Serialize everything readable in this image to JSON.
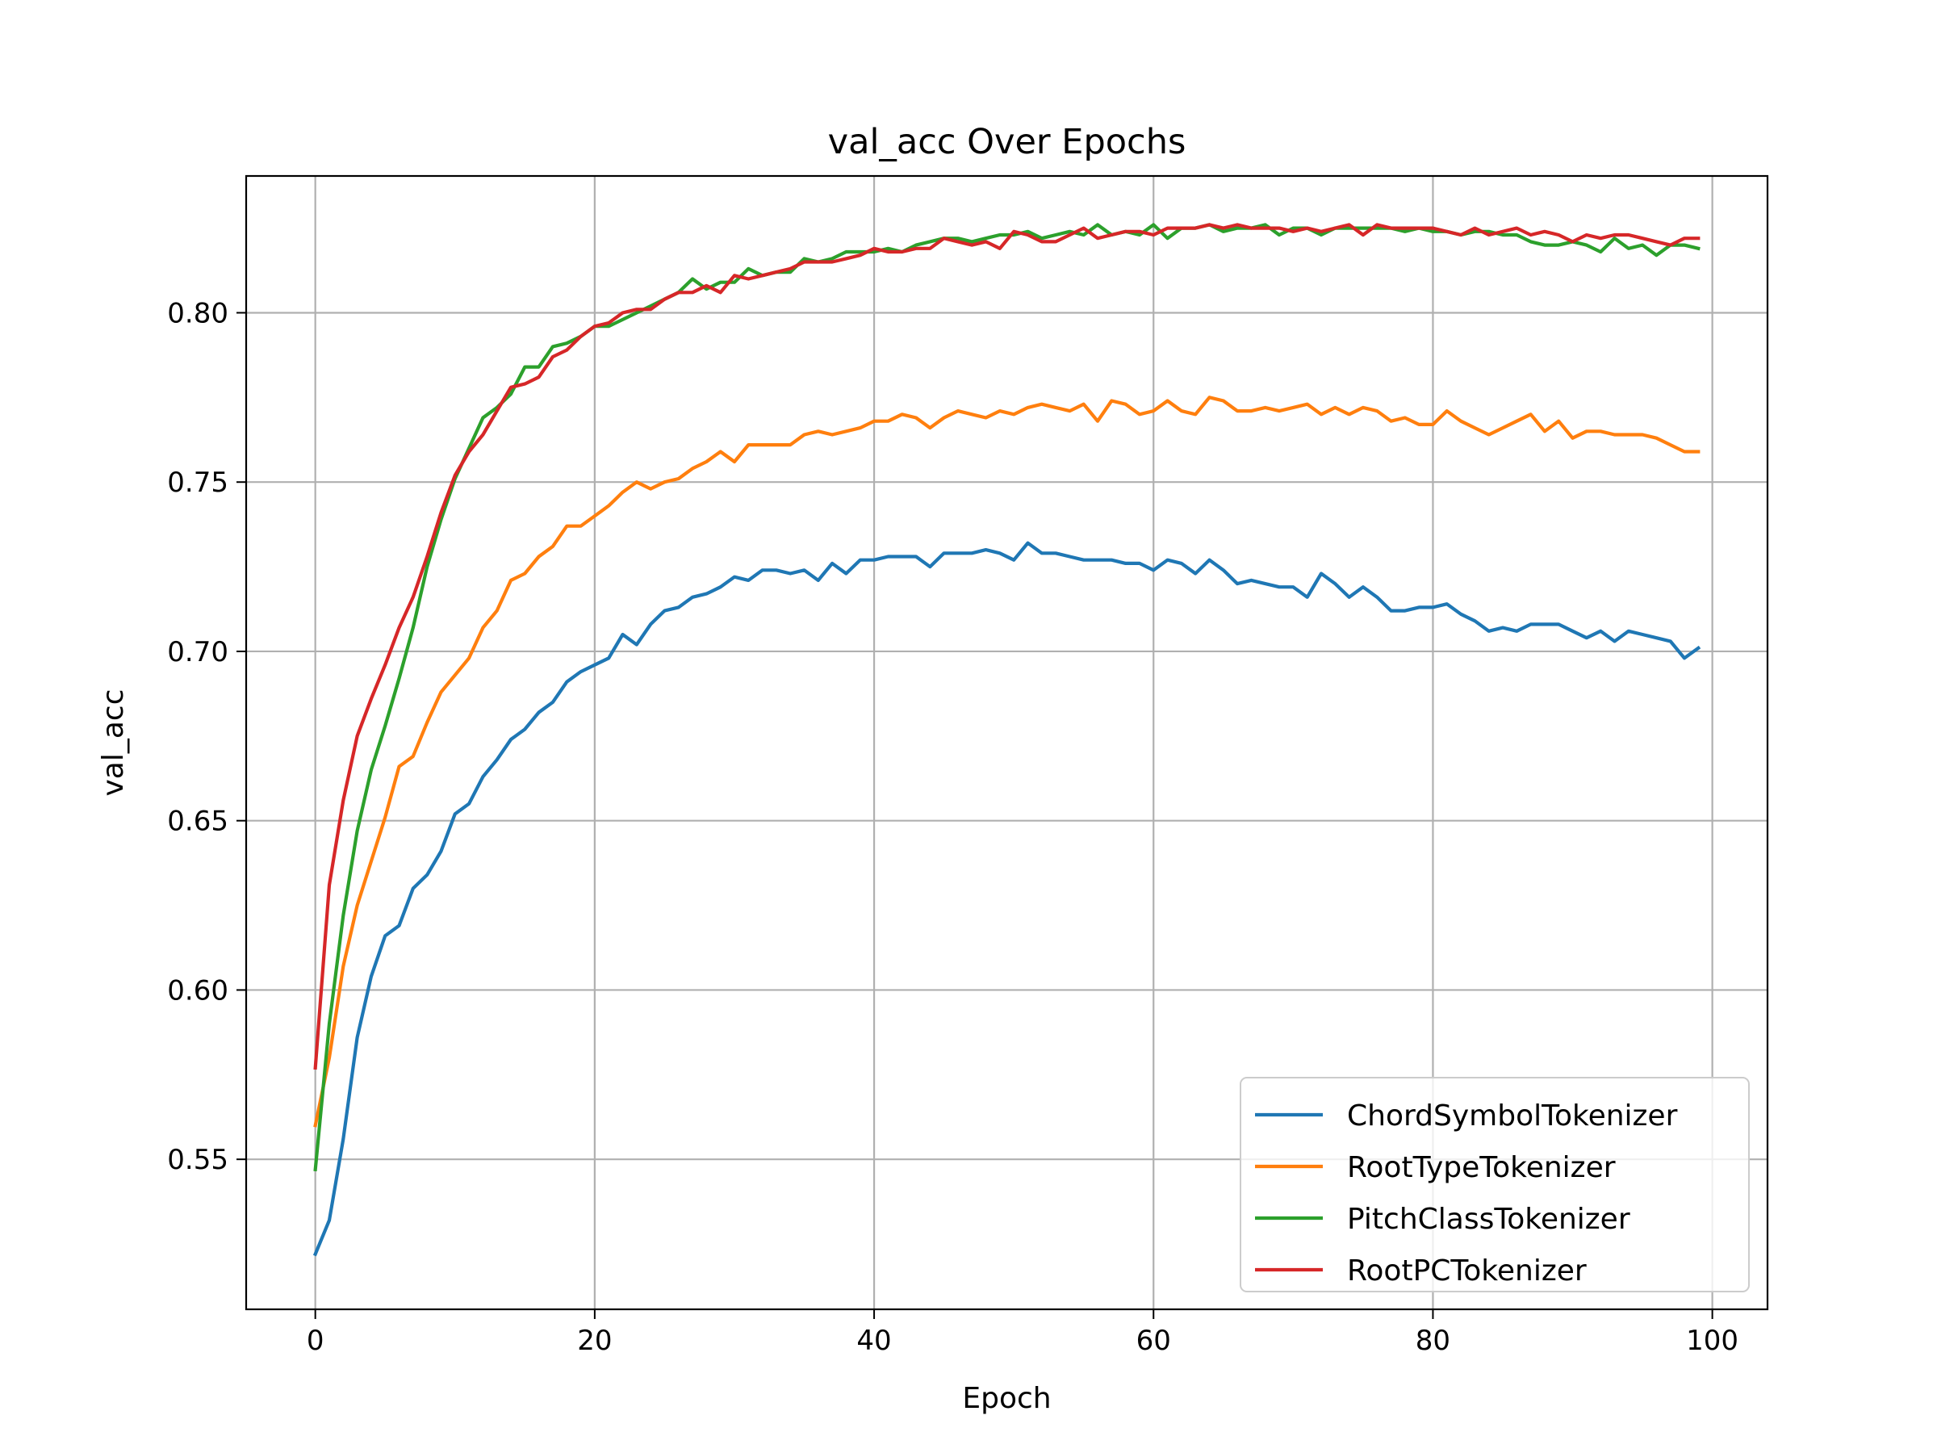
{
  "chart_data": {
    "type": "line",
    "title": "val_acc Over Epochs",
    "xlabel": "Epoch",
    "ylabel": "val_acc",
    "xlim": [
      -4.95,
      103.95
    ],
    "ylim": [
      0.5057,
      0.8404
    ],
    "xticks": [
      0,
      20,
      40,
      60,
      80,
      100
    ],
    "xtick_labels": [
      "0",
      "20",
      "40",
      "60",
      "80",
      "100"
    ],
    "yticks": [
      0.55,
      0.6,
      0.65,
      0.7,
      0.75,
      0.8
    ],
    "ytick_labels": [
      "0.55",
      "0.60",
      "0.65",
      "0.70",
      "0.75",
      "0.80"
    ],
    "grid": true,
    "legend_position": "lower-right",
    "x": [
      0,
      1,
      2,
      3,
      4,
      5,
      6,
      7,
      8,
      9,
      10,
      11,
      12,
      13,
      14,
      15,
      16,
      17,
      18,
      19,
      20,
      21,
      22,
      23,
      24,
      25,
      26,
      27,
      28,
      29,
      30,
      31,
      32,
      33,
      34,
      35,
      36,
      37,
      38,
      39,
      40,
      41,
      42,
      43,
      44,
      45,
      46,
      47,
      48,
      49,
      50,
      51,
      52,
      53,
      54,
      55,
      56,
      57,
      58,
      59,
      60,
      61,
      62,
      63,
      64,
      65,
      66,
      67,
      68,
      69,
      70,
      71,
      72,
      73,
      74,
      75,
      76,
      77,
      78,
      79,
      80,
      81,
      82,
      83,
      84,
      85,
      86,
      87,
      88,
      89,
      90,
      91,
      92,
      93,
      94,
      95,
      96,
      97,
      98,
      99
    ],
    "series": [
      {
        "name": "ChordSymbolTokenizer",
        "color": "#1f77b4",
        "values": [
          0.522,
          0.532,
          0.556,
          0.586,
          0.604,
          0.616,
          0.619,
          0.63,
          0.634,
          0.641,
          0.652,
          0.655,
          0.663,
          0.668,
          0.674,
          0.677,
          0.682,
          0.685,
          0.691,
          0.694,
          0.696,
          0.698,
          0.705,
          0.702,
          0.708,
          0.712,
          0.713,
          0.716,
          0.717,
          0.719,
          0.722,
          0.721,
          0.724,
          0.724,
          0.723,
          0.724,
          0.721,
          0.726,
          0.723,
          0.727,
          0.727,
          0.728,
          0.728,
          0.728,
          0.725,
          0.729,
          0.729,
          0.729,
          0.73,
          0.729,
          0.727,
          0.732,
          0.729,
          0.729,
          0.728,
          0.727,
          0.727,
          0.727,
          0.726,
          0.726,
          0.724,
          0.727,
          0.726,
          0.723,
          0.727,
          0.724,
          0.72,
          0.721,
          0.72,
          0.719,
          0.719,
          0.716,
          0.723,
          0.72,
          0.716,
          0.719,
          0.716,
          0.712,
          0.712,
          0.713,
          0.713,
          0.714,
          0.711,
          0.709,
          0.706,
          0.707,
          0.706,
          0.708,
          0.708,
          0.708,
          0.706,
          0.704,
          0.706,
          0.703,
          0.706,
          0.705,
          0.704,
          0.703,
          0.698,
          0.701
        ]
      },
      {
        "name": "RootTypeTokenizer",
        "color": "#ff7f0e",
        "values": [
          0.56,
          0.58,
          0.607,
          0.625,
          0.638,
          0.651,
          0.666,
          0.669,
          0.679,
          0.688,
          0.693,
          0.698,
          0.707,
          0.712,
          0.721,
          0.723,
          0.728,
          0.731,
          0.737,
          0.737,
          0.74,
          0.743,
          0.747,
          0.75,
          0.748,
          0.75,
          0.751,
          0.754,
          0.756,
          0.759,
          0.756,
          0.761,
          0.761,
          0.761,
          0.761,
          0.764,
          0.765,
          0.764,
          0.765,
          0.766,
          0.768,
          0.768,
          0.77,
          0.769,
          0.766,
          0.769,
          0.771,
          0.77,
          0.769,
          0.771,
          0.77,
          0.772,
          0.773,
          0.772,
          0.771,
          0.773,
          0.768,
          0.774,
          0.773,
          0.77,
          0.771,
          0.774,
          0.771,
          0.77,
          0.775,
          0.774,
          0.771,
          0.771,
          0.772,
          0.771,
          0.772,
          0.773,
          0.77,
          0.772,
          0.77,
          0.772,
          0.771,
          0.768,
          0.769,
          0.767,
          0.767,
          0.771,
          0.768,
          0.766,
          0.764,
          0.766,
          0.768,
          0.77,
          0.765,
          0.768,
          0.763,
          0.765,
          0.765,
          0.764,
          0.764,
          0.764,
          0.763,
          0.761,
          0.759,
          0.759
        ]
      },
      {
        "name": "PitchClassTokenizer",
        "color": "#2ca02c",
        "values": [
          0.547,
          0.59,
          0.622,
          0.647,
          0.665,
          0.678,
          0.692,
          0.707,
          0.725,
          0.739,
          0.751,
          0.76,
          0.769,
          0.772,
          0.776,
          0.784,
          0.784,
          0.79,
          0.791,
          0.793,
          0.796,
          0.796,
          0.798,
          0.8,
          0.802,
          0.804,
          0.806,
          0.81,
          0.807,
          0.809,
          0.809,
          0.813,
          0.811,
          0.812,
          0.812,
          0.816,
          0.815,
          0.816,
          0.818,
          0.818,
          0.818,
          0.819,
          0.818,
          0.82,
          0.821,
          0.822,
          0.822,
          0.821,
          0.822,
          0.823,
          0.823,
          0.824,
          0.822,
          0.823,
          0.824,
          0.823,
          0.826,
          0.823,
          0.824,
          0.823,
          0.826,
          0.822,
          0.825,
          0.825,
          0.826,
          0.824,
          0.825,
          0.825,
          0.826,
          0.823,
          0.825,
          0.825,
          0.823,
          0.825,
          0.825,
          0.825,
          0.825,
          0.825,
          0.824,
          0.825,
          0.824,
          0.824,
          0.823,
          0.824,
          0.824,
          0.823,
          0.823,
          0.821,
          0.82,
          0.82,
          0.821,
          0.82,
          0.818,
          0.822,
          0.819,
          0.82,
          0.817,
          0.82,
          0.82,
          0.819
        ]
      },
      {
        "name": "RootPCTokenizer",
        "color": "#d62728",
        "values": [
          0.577,
          0.631,
          0.656,
          0.675,
          0.686,
          0.696,
          0.707,
          0.716,
          0.728,
          0.741,
          0.752,
          0.759,
          0.764,
          0.771,
          0.778,
          0.779,
          0.781,
          0.787,
          0.789,
          0.793,
          0.796,
          0.797,
          0.8,
          0.801,
          0.801,
          0.804,
          0.806,
          0.806,
          0.808,
          0.806,
          0.811,
          0.81,
          0.811,
          0.812,
          0.813,
          0.815,
          0.815,
          0.815,
          0.816,
          0.817,
          0.819,
          0.818,
          0.818,
          0.819,
          0.819,
          0.822,
          0.821,
          0.82,
          0.821,
          0.819,
          0.824,
          0.823,
          0.821,
          0.821,
          0.823,
          0.825,
          0.822,
          0.823,
          0.824,
          0.824,
          0.823,
          0.825,
          0.825,
          0.825,
          0.826,
          0.825,
          0.826,
          0.825,
          0.825,
          0.825,
          0.824,
          0.825,
          0.824,
          0.825,
          0.826,
          0.823,
          0.826,
          0.825,
          0.825,
          0.825,
          0.825,
          0.824,
          0.823,
          0.825,
          0.823,
          0.824,
          0.825,
          0.823,
          0.824,
          0.823,
          0.821,
          0.823,
          0.822,
          0.823,
          0.823,
          0.822,
          0.821,
          0.82,
          0.822,
          0.822
        ]
      }
    ]
  }
}
